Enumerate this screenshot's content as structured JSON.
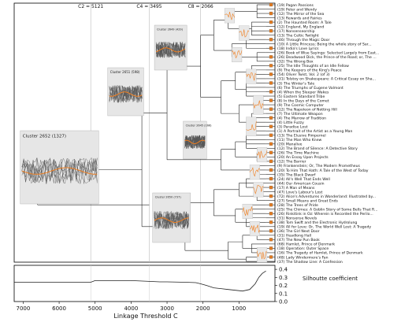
{
  "chart_data": [
    {
      "type": "dendrogram",
      "title": "",
      "xlabel": "Linkage Threshold C",
      "ylabel": "",
      "xlim": [
        7250,
        0
      ],
      "x_ticks": [
        7000,
        6000,
        5000,
        4000,
        3000,
        2000,
        1000
      ],
      "cut_lines": [
        {
          "label": "C2 = 5121",
          "x": 5121
        },
        {
          "label": "C4 = 3495",
          "x": 3495
        },
        {
          "label": "C8 = 2066",
          "x": 2066
        }
      ],
      "cluster_panels": [
        {
          "label": "Cluster 2652 (1327)"
        },
        {
          "label": "Cluster 2651 (598)"
        },
        {
          "label": "Cluster 2649 (429)"
        },
        {
          "label": "Cluster 2650 (737)"
        },
        {
          "label": "Cluster 2645 (166)"
        }
      ],
      "leaves": [
        "(19) Pagan Passions",
        "(19) Peter and Wendy",
        "(12) The Mirror of the Sea",
        "(13) Rewards and Fairies",
        "(2) The Haunted Room: A Tale",
        "(12) England, My England",
        "(17) Nonsenseorship",
        "(13) The Celtic Twilight",
        "(46) Through the Magic Door",
        "(10) A Little Princess; Being the whole story of Sar...",
        "(18) India's Love Lyrics",
        "(26) Book of Wise Sayings: Selected Largely from East...",
        "(26) Deadwood Dick, the Prince of the Road; or, The ...",
        "(32) The Wrong Box",
        "(25) The Idle Thoughts of an Idle Fellow",
        "(9) The Keepers of the King's Peace",
        "(54) Oliver Twist, Vol. 2 (of 3)",
        "(31) Tolstoy on Shakespeare: A Critical Essay on Sha...",
        "(3) The Winter's Tale",
        "(6) The Triumphs of Eugene Valmont",
        "(4) When the Sleeper Wakes",
        "(5) Eastern Standard Tribe",
        "(8) In the Days of the Comet",
        "(9) The Cosmic Computer",
        "(12) The Napoleon of Notting Hill",
        "(7) The Ultimate Weapon",
        "(4) The Marrow of Tradition",
        "(4) Little Fuzzy",
        "(3) Paradise Lost",
        "(1) A Portrait of the Artist as a Young Man",
        "(13) The Elusive Pimpernel",
        "(11) The Man Who Knew",
        "(20) Manalive",
        "(12) The Brand of Silence: A Detective Story",
        "(26) The Time Machine",
        "(20) An Essay Upon Projects",
        "(12) The Barrier",
        "(9) Frankenstein; Or, The Modern Prometheus",
        "(20) To Him That Hath: A Tale of the West of Today",
        "(35) The Black Dwarf",
        "(24) All's Well That Ends Well",
        "(44) Our American Cousin",
        "(17) A Man of Means",
        "(47) Love's Labour's Lost",
        "(72) Alice's Adventures in Wonderland: Illustrated by...",
        "(27) Small Means and Great Ends",
        "(28) The Trees of Pride",
        "(25) The Chimes: A Goblin Story of Some Bells That R...",
        "(26) Rinkitink in Oz: Wherein is Recorded the Perilo...",
        "(31) Nonsense Novels",
        "(38) Tom Swift and the Electronic Hydrolung",
        "(19) All for Love: Or, The World Well Lost: A Tragedy",
        "(36) The Girl Next Door",
        "(31) Headlong Hall",
        "(47) The New Pun Book",
        "(68) Hamlet, Prince of Denmark",
        "(18) Operation: Outer Space",
        "(16) The Tragedy of Hamlet, Prince of Denmark",
        "(48) Lady Windermere's Fan",
        "(37) The Shadow Line: A Confession"
      ]
    },
    {
      "type": "line",
      "title": "",
      "xlabel": "Linkage Threshold C",
      "ylabel": "Silhoutte coefficient",
      "xlim": [
        7250,
        0
      ],
      "ylim": [
        0,
        0.45
      ],
      "y_ticks": [
        0.0,
        0.1,
        0.2,
        0.3,
        0.4
      ],
      "series": [
        {
          "x": [
            7250,
            7000,
            6000,
            5121,
            5000,
            4000,
            3495,
            3200,
            3000,
            2500,
            2200,
            2066,
            1900,
            1700,
            1500,
            1300,
            1100,
            900,
            700,
            550,
            450,
            350,
            250
          ],
          "y": [
            0.24,
            0.24,
            0.24,
            0.24,
            0.26,
            0.26,
            0.25,
            0.245,
            0.245,
            0.24,
            0.235,
            0.22,
            0.2,
            0.17,
            0.16,
            0.15,
            0.14,
            0.13,
            0.15,
            0.22,
            0.3,
            0.35,
            0.38
          ]
        }
      ]
    }
  ]
}
